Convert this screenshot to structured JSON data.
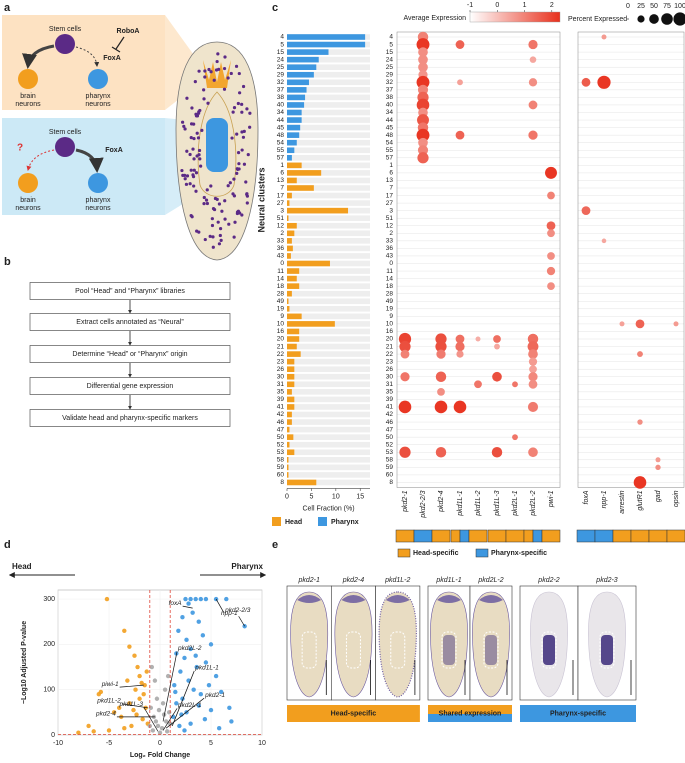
{
  "panel_labels": [
    "a",
    "b",
    "c",
    "d",
    "e"
  ],
  "schematic": {
    "head": {
      "stem": "Stem cells",
      "repressor": "RoboA",
      "factor": "FoxA",
      "brain": [
        "brain",
        "neurons"
      ],
      "pharynx": [
        "pharynx",
        "neurons"
      ]
    },
    "pharynx": {
      "stem": "Stem cells",
      "question": "?",
      "factor": "FoxA",
      "brain": [
        "brain",
        "neurons"
      ],
      "pharynx": [
        "pharynx",
        "neurons"
      ]
    }
  },
  "workflow": {
    "steps": [
      "Pool “Head” and “Pharynx” libraries",
      "Extract cells annotated as “Neural”",
      "Determine “Head” or “Pharynx” origin",
      "Differential gene expression",
      "Validate head and pharynx-specific markers"
    ]
  },
  "chart_data": [
    {
      "type": "bar",
      "orientation": "horizontal",
      "y_label": "Neural clusters",
      "x_label": "Cell Fraction (%)",
      "categories": [
        "4",
        "5",
        "15",
        "24",
        "25",
        "29",
        "32",
        "37",
        "38",
        "40",
        "34",
        "44",
        "45",
        "48",
        "54",
        "55",
        "57",
        "1",
        "6",
        "13",
        "7",
        "17",
        "27",
        "3",
        "51",
        "12",
        "2",
        "33",
        "36",
        "43",
        "0",
        "11",
        "14",
        "18",
        "28",
        "49",
        "19",
        "9",
        "10",
        "16",
        "20",
        "21",
        "22",
        "23",
        "26",
        "30",
        "31",
        "35",
        "39",
        "41",
        "42",
        "46",
        "47",
        "50",
        "52",
        "53",
        "58",
        "59",
        "60",
        "8"
      ],
      "series": [
        {
          "name": "Head",
          "color": "#f29e1e",
          "values": [
            null,
            null,
            null,
            null,
            null,
            null,
            null,
            null,
            null,
            null,
            null,
            null,
            null,
            null,
            null,
            null,
            null,
            3,
            7,
            2,
            5.5,
            1,
            0.5,
            12.5,
            0.3,
            2,
            1.5,
            1,
            1.2,
            0.8,
            8.8,
            2.5,
            2,
            2.5,
            1,
            0.3,
            0.5,
            3,
            9.8,
            2.5,
            2.5,
            2,
            2.8,
            1.5,
            1.5,
            1.5,
            1.5,
            1,
            1.5,
            1.5,
            1,
            1,
            0.5,
            1.3,
            0.5,
            1.5,
            0.3,
            0.3,
            0.3,
            6
          ]
        },
        {
          "name": "Pharynx",
          "color": "#3d97e0",
          "values": [
            16,
            16,
            8.5,
            6.5,
            6,
            5.5,
            4.5,
            4,
            3.7,
            3.5,
            3,
            3,
            2.7,
            2.5,
            2,
            1.5,
            1,
            null,
            null,
            null,
            null,
            null,
            null,
            null,
            null,
            null,
            null,
            null,
            null,
            null,
            null,
            null,
            null,
            null,
            null,
            null,
            null,
            null,
            null,
            null,
            null,
            null,
            null,
            null,
            null,
            null,
            null,
            null,
            null,
            null,
            null,
            null,
            null,
            null,
            null,
            null,
            null,
            null,
            null,
            null
          ]
        }
      ],
      "xlim": [
        0,
        17
      ],
      "xticks": [
        0,
        5,
        10,
        15
      ]
    },
    {
      "type": "dotplot",
      "color_label": "Average Expression",
      "color_lim": [
        -1,
        2.3
      ],
      "color_ticks": [
        -1,
        0,
        1,
        2
      ],
      "color_range": [
        "#ffffff",
        "#e8301c"
      ],
      "size_label": "Percent Expressed",
      "size_ticks": [
        0,
        25,
        50,
        75,
        100
      ],
      "gene_groups": [
        {
          "genes": [
            "pkd2-1",
            "pkd2-2/3",
            "pkd2-4",
            "pkd1L-1",
            "pkd1L-2",
            "pkd1L-3",
            "pkd2L-1",
            "pkd2L-2",
            "pwi-1"
          ],
          "specificity": [
            "head",
            "pharynx",
            "head",
            "both",
            "head",
            "head",
            "head",
            "both",
            "head"
          ]
        },
        {
          "genes": [
            "foxA",
            "npp-1",
            "arrestin",
            "glutR1",
            "gad",
            "opsin"
          ],
          "specificity": [
            "pharynx",
            "pharynx",
            "head",
            "head",
            "head",
            "head"
          ]
        }
      ],
      "specificity_legend": [
        {
          "name": "Head-specific",
          "color": "#f29e1e"
        },
        {
          "name": "Pharynx-specific",
          "color": "#3d97e0"
        }
      ],
      "dots": [
        [
          0,
          0,
          1,
          60,
          1
        ],
        [
          1,
          0,
          1,
          95,
          2.2
        ],
        [
          2,
          0,
          1,
          50,
          0.8
        ],
        [
          3,
          0,
          1,
          50,
          0.8
        ],
        [
          4,
          0,
          1,
          50,
          0.8
        ],
        [
          5,
          0,
          1,
          45,
          0.7
        ],
        [
          6,
          0,
          1,
          95,
          2.2
        ],
        [
          7,
          0,
          1,
          55,
          1
        ],
        [
          8,
          0,
          1,
          70,
          1.5
        ],
        [
          9,
          0,
          1,
          90,
          2
        ],
        [
          10,
          0,
          1,
          50,
          0.8
        ],
        [
          11,
          0,
          1,
          80,
          1.7
        ],
        [
          12,
          0,
          1,
          60,
          1.2
        ],
        [
          13,
          0,
          1,
          95,
          2.2
        ],
        [
          14,
          0,
          1,
          50,
          0.8
        ],
        [
          15,
          0,
          1,
          55,
          1
        ],
        [
          16,
          0,
          1,
          70,
          1.5
        ],
        [
          1,
          0,
          3,
          40,
          1.5
        ],
        [
          13,
          0,
          3,
          40,
          1.5
        ],
        [
          6,
          0,
          3,
          15,
          0.5
        ],
        [
          1,
          0,
          7,
          45,
          1.2
        ],
        [
          6,
          0,
          7,
          35,
          0.8
        ],
        [
          9,
          0,
          7,
          40,
          1
        ],
        [
          13,
          0,
          7,
          45,
          1.2
        ],
        [
          3,
          0,
          7,
          20,
          0.4
        ],
        [
          18,
          0,
          8,
          80,
          2.2
        ],
        [
          21,
          0,
          8,
          30,
          1
        ],
        [
          25,
          0,
          8,
          40,
          1.5
        ],
        [
          26,
          0,
          8,
          30,
          0.8
        ],
        [
          29,
          0,
          8,
          30,
          0.8
        ],
        [
          31,
          0,
          8,
          35,
          1
        ],
        [
          33,
          0,
          8,
          30,
          0.8
        ],
        [
          40,
          0,
          0,
          85,
          2
        ],
        [
          41,
          0,
          0,
          70,
          1.8
        ],
        [
          42,
          0,
          0,
          40,
          1
        ],
        [
          45,
          0,
          0,
          45,
          1.2
        ],
        [
          49,
          0,
          0,
          90,
          2.2
        ],
        [
          55,
          0,
          0,
          70,
          1.8
        ],
        [
          40,
          0,
          2,
          70,
          1.8
        ],
        [
          41,
          0,
          2,
          70,
          1.8
        ],
        [
          42,
          0,
          2,
          45,
          1.1
        ],
        [
          45,
          0,
          2,
          60,
          1.5
        ],
        [
          49,
          0,
          2,
          90,
          2.2
        ],
        [
          55,
          0,
          2,
          60,
          1.5
        ],
        [
          47,
          0,
          2,
          30,
          0.8
        ],
        [
          40,
          0,
          3,
          40,
          1.3
        ],
        [
          41,
          0,
          3,
          45,
          1.3
        ],
        [
          49,
          0,
          3,
          90,
          2.2
        ],
        [
          42,
          0,
          3,
          25,
          0.7
        ],
        [
          46,
          0,
          4,
          30,
          1.2
        ],
        [
          40,
          0,
          4,
          10,
          0.3
        ],
        [
          40,
          0,
          5,
          30,
          1.3
        ],
        [
          45,
          0,
          5,
          50,
          1.8
        ],
        [
          55,
          0,
          5,
          60,
          1.8
        ],
        [
          41,
          0,
          5,
          15,
          0.4
        ],
        [
          46,
          0,
          6,
          15,
          1.2
        ],
        [
          53,
          0,
          6,
          15,
          1.2
        ],
        [
          40,
          0,
          7,
          60,
          1.3
        ],
        [
          41,
          0,
          7,
          65,
          1.4
        ],
        [
          42,
          0,
          7,
          50,
          1
        ],
        [
          43,
          0,
          7,
          35,
          0.6
        ],
        [
          44,
          0,
          7,
          30,
          0.5
        ],
        [
          45,
          0,
          7,
          45,
          0.9
        ],
        [
          46,
          0,
          7,
          40,
          0.8
        ],
        [
          49,
          0,
          7,
          55,
          1.1
        ],
        [
          55,
          0,
          7,
          50,
          1
        ],
        [
          6,
          1,
          0,
          40,
          1.6
        ],
        [
          0,
          1,
          1,
          10,
          0.6
        ],
        [
          6,
          1,
          1,
          100,
          2.2
        ],
        [
          23,
          1,
          0,
          40,
          1.4
        ],
        [
          38,
          1,
          3,
          40,
          1.5
        ],
        [
          59,
          1,
          3,
          90,
          2.2
        ],
        [
          42,
          1,
          3,
          15,
          1
        ],
        [
          51,
          1,
          3,
          12,
          0.8
        ],
        [
          57,
          1,
          4,
          12,
          0.8
        ],
        [
          56,
          1,
          4,
          10,
          0.6
        ],
        [
          38,
          1,
          5,
          10,
          0.6
        ],
        [
          38,
          1,
          2,
          10,
          0.5
        ],
        [
          27,
          1,
          1,
          8,
          0.4
        ]
      ]
    },
    {
      "type": "scatter",
      "left_label": "Head",
      "right_label": "Pharynx",
      "x_label": "Log₂ Fold Change",
      "y_label": "−Log10 Adjusted P-value",
      "xlim": [
        -10,
        10
      ],
      "ylim": [
        0,
        320
      ],
      "xticks": [
        -10,
        -5,
        0,
        5,
        10
      ],
      "yticks": [
        0,
        100,
        200,
        300
      ],
      "threshold_x": [
        -1,
        1
      ],
      "threshold_y": 1.3,
      "threshold_color": "#e0483a",
      "groups": [
        {
          "color": "#f29e1e",
          "x": [
            -5.2,
            -5.8,
            -6,
            -3.5,
            -3,
            -2.5,
            -2.2,
            -2,
            -1.8,
            -1.5,
            -3.2,
            -4,
            -4.5,
            -3.8,
            -3,
            -2.6,
            -2.3,
            -2,
            -1.7,
            -1.4,
            -1.2,
            -2.8,
            -3.5,
            -5,
            -6.5,
            -8,
            -7,
            -1.6,
            -2.4,
            -1.3
          ],
          "y": [
            300,
            95,
            90,
            230,
            195,
            175,
            150,
            130,
            115,
            110,
            120,
            60,
            50,
            40,
            70,
            55,
            45,
            80,
            35,
            60,
            25,
            20,
            15,
            10,
            8,
            5,
            20,
            90,
            100,
            140
          ]
        },
        {
          "color": "#3d97e0",
          "x": [
            2.5,
            3,
            3.5,
            4,
            4.5,
            5.5,
            6.5,
            2.8,
            8.3,
            3.2,
            2.2,
            3.8,
            1.8,
            4.2,
            2.6,
            5,
            3,
            1.6,
            2.4,
            4.5,
            3.6,
            2,
            5.5,
            2.8,
            1.4,
            3.3,
            6,
            4,
            2.2,
            1.6,
            3.8,
            5,
            2.6,
            1.3,
            4.4,
            7,
            3,
            1.9,
            5.8,
            2.4,
            1.5,
            3.5,
            4.8,
            2.1,
            6.8
          ],
          "y": [
            300,
            300,
            300,
            300,
            300,
            300,
            300,
            290,
            240,
            270,
            260,
            250,
            230,
            220,
            210,
            200,
            190,
            180,
            170,
            160,
            150,
            140,
            130,
            120,
            110,
            100,
            95,
            90,
            80,
            70,
            65,
            55,
            50,
            40,
            35,
            30,
            25,
            20,
            15,
            10,
            95,
            175,
            110,
            45,
            60
          ]
        },
        {
          "color": "#a8a8a8",
          "x": [
            -0.8,
            -0.5,
            0.5,
            0.8,
            -0.3,
            0.3,
            -0.9,
            0.9,
            -0.6,
            0.6,
            -0.2,
            0.2,
            -0.7,
            0.7,
            0,
            -0.4,
            0.4,
            -1,
            1,
            -0.1
          ],
          "y": [
            150,
            120,
            100,
            130,
            80,
            70,
            60,
            50,
            40,
            30,
            20,
            15,
            10,
            8,
            5,
            30,
            45,
            20,
            25,
            55
          ]
        }
      ],
      "annotations": [
        {
          "label": "pkd2-2/3",
          "x": 5.5,
          "y": 300
        },
        {
          "label": "foxA",
          "x": 3.2,
          "y": 280
        },
        {
          "label": "npp-1",
          "x": 8.3,
          "y": 240
        },
        {
          "label": "pkd2L-2",
          "x": 0.3,
          "y": 30
        },
        {
          "label": "pkd1L-1",
          "x": 1.2,
          "y": 20
        },
        {
          "label": "pkd2-1",
          "x": 0.6,
          "y": 15
        },
        {
          "label": "pkd2L-1",
          "x": 0.3,
          "y": 10
        },
        {
          "label": "piwi-1",
          "x": -1.6,
          "y": 110
        },
        {
          "label": "pkd1L-2",
          "x": -1.2,
          "y": 60
        },
        {
          "label": "pkd2-4",
          "x": -0.5,
          "y": 40
        },
        {
          "label": "pkd1L-3",
          "x": -0.2,
          "y": 8
        }
      ]
    }
  ],
  "images": {
    "groups": [
      {
        "label": "Head-specific",
        "style": "head",
        "panels": [
          "pkd2-1",
          "pkd2-4",
          "pkd1L-2"
        ]
      },
      {
        "label": "Shared expression",
        "style": "both",
        "panels": [
          "pkd1L-1",
          "pkd2L-2"
        ]
      },
      {
        "label": "Pharynx-specific",
        "style": "pharynx",
        "panels": [
          "pkd2-2",
          "pkd2-3"
        ]
      }
    ]
  }
}
